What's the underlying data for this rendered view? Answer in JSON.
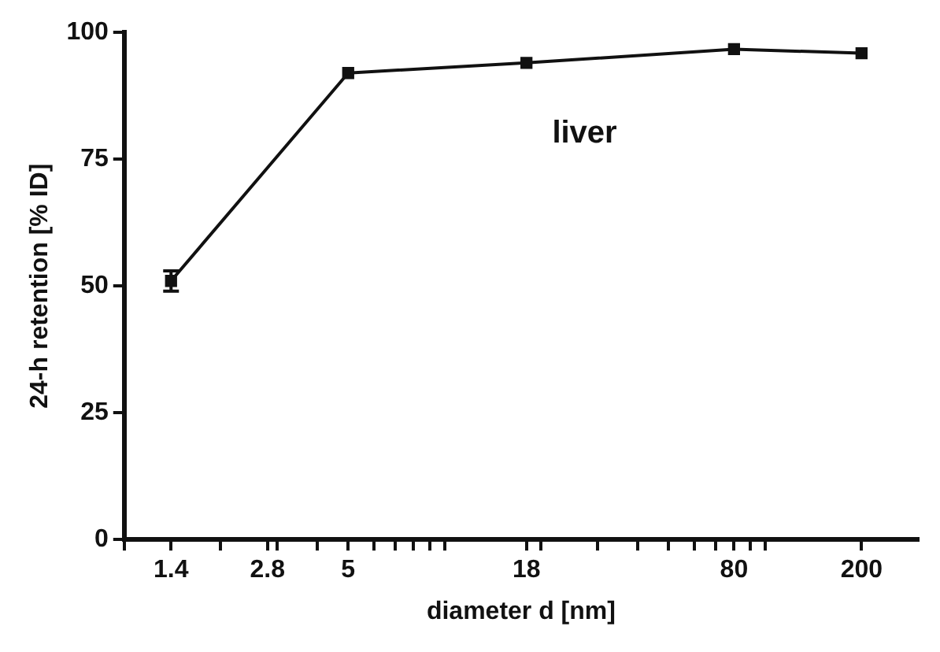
{
  "chart_data": {
    "type": "line",
    "xlabel": "diameter d [nm]",
    "ylabel": "24-h retention [% ID]",
    "log": "x",
    "x": [
      1.4,
      5,
      18,
      80,
      200
    ],
    "series": [
      {
        "color": "#111111",
        "values": [
          51,
          92,
          94,
          96.7,
          95.9
        ],
        "errors": [
          2,
          null,
          null,
          null,
          null
        ]
      }
    ],
    "xlim": [
      1,
      300
    ],
    "xticks": [
      {
        "value": 1,
        "label": null
      },
      1.4,
      {
        "value": 2,
        "label": null
      },
      2.8,
      {
        "value": 3,
        "label": null
      },
      {
        "value": 4,
        "label": null
      },
      5,
      {
        "value": 6,
        "label": null
      },
      {
        "value": 7,
        "label": null
      },
      {
        "value": 8,
        "label": null
      },
      {
        "value": 9,
        "label": null
      },
      {
        "value": 10,
        "label": null
      },
      18,
      {
        "value": 20,
        "label": null
      },
      {
        "value": 30,
        "label": null
      },
      {
        "value": 40,
        "label": null
      },
      {
        "value": 50,
        "label": null
      },
      {
        "value": 60,
        "label": null
      },
      {
        "value": 70,
        "label": null
      },
      80,
      {
        "value": 90,
        "label": null
      },
      {
        "value": 100,
        "label": null
      },
      200
    ],
    "ylim": [
      0,
      100
    ],
    "yticks": [
      0,
      25,
      50,
      75,
      100
    ],
    "annotations": [
      "liver"
    ],
    "grid": false,
    "legend": false,
    "marker": "square",
    "line_style": "solid"
  }
}
